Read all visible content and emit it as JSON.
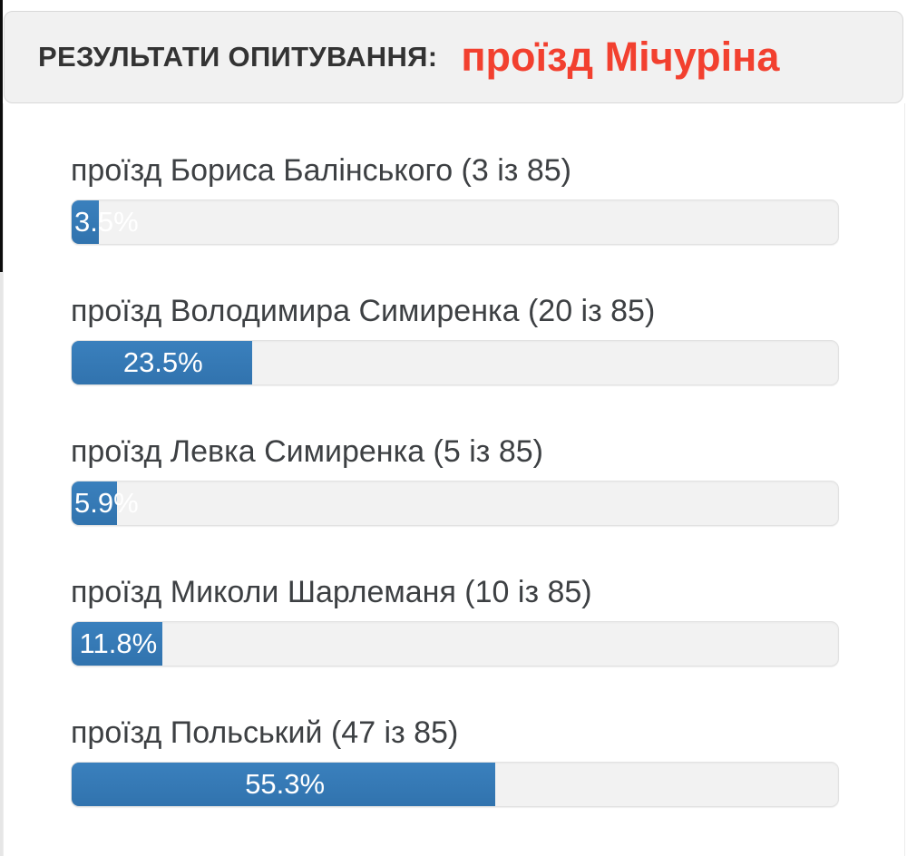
{
  "header": {
    "title": "РЕЗУЛЬТАТИ ОПИТУВАННЯ:",
    "title_color": "#333333",
    "poll_name": "проїзд Мічуріна",
    "poll_name_color": "#f2402f",
    "background": "#f1f1f1"
  },
  "chart_data": {
    "type": "bar",
    "orientation": "horizontal",
    "title": "РЕЗУЛЬТАТИ ОПИТУВАННЯ: проїзд Мічуріна",
    "total_votes": 85,
    "xlim": [
      0,
      100
    ],
    "unit": "%",
    "grid": false,
    "legend": false,
    "categories": [
      "проїзд Бориса Балінського",
      "проїзд Володимира Симиренка",
      "проїзд Левка Симиренка",
      "проїзд Миколи Шарлеманя",
      "проїзд Польський"
    ],
    "values": [
      3.5,
      23.5,
      5.9,
      11.8,
      55.3
    ],
    "options": [
      {
        "label": "проїзд Бориса Балінського (3 із 85)",
        "votes": 3,
        "total": 85,
        "percent": 3.5,
        "percent_label": "3.5%"
      },
      {
        "label": "проїзд Володимира Симиренка (20 із 85)",
        "votes": 20,
        "total": 85,
        "percent": 23.5,
        "percent_label": "23.5%"
      },
      {
        "label": "проїзд Левка Симиренка (5 із 85)",
        "votes": 5,
        "total": 85,
        "percent": 5.9,
        "percent_label": "5.9%"
      },
      {
        "label": "проїзд Миколи Шарлеманя (10 із 85)",
        "votes": 10,
        "total": 85,
        "percent": 11.8,
        "percent_label": "11.8%"
      },
      {
        "label": "проїзд Польський (47 із 85)",
        "votes": 47,
        "total": 85,
        "percent": 55.3,
        "percent_label": "55.3%"
      }
    ],
    "colors": {
      "bar_fill": "#337ab7",
      "bar_track": "#f2f2f2",
      "bar_track_border": "#e2e2e2",
      "percent_text": "#ffffff",
      "label_text": "#3d4043"
    }
  }
}
